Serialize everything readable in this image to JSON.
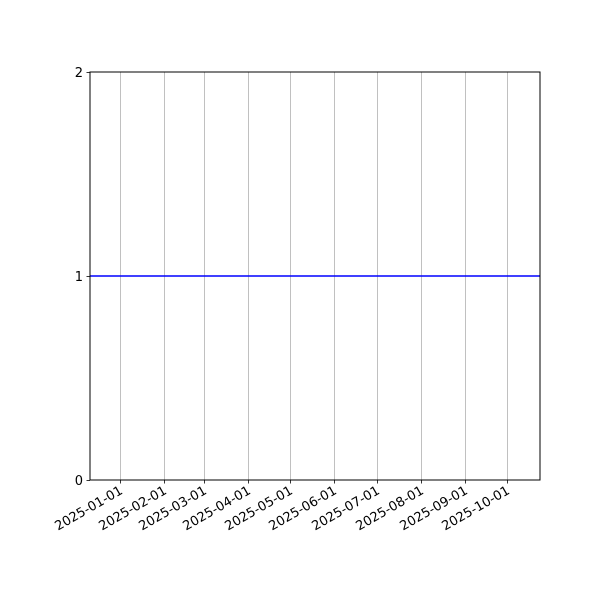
{
  "chart_data": {
    "type": "line",
    "title": "",
    "xlabel": "",
    "ylabel": "",
    "xlim": [
      "2024-12-11",
      "2025-10-24"
    ],
    "ylim": [
      0,
      2
    ],
    "x_ticks": [
      "2025-01-01",
      "2025-02-01",
      "2025-03-01",
      "2025-04-01",
      "2025-05-01",
      "2025-06-01",
      "2025-07-01",
      "2025-08-01",
      "2025-09-01",
      "2025-10-01"
    ],
    "y_ticks": [
      "0",
      "1",
      "2"
    ],
    "grid": {
      "x": true,
      "y": false
    },
    "series": [
      {
        "x": [
          "2024-12-11",
          "2025-10-24"
        ],
        "y": [
          1,
          1
        ],
        "color": "#0000ff"
      }
    ]
  }
}
